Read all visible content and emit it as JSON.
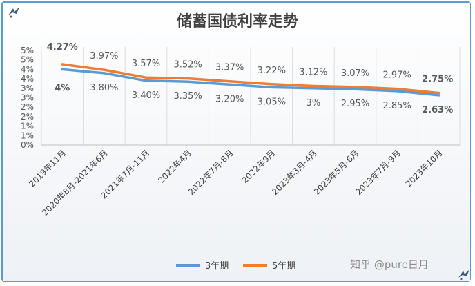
{
  "chart_data": {
    "type": "line",
    "title": "储蓄国债利率走势",
    "xlabel": "",
    "ylabel": "",
    "categories": [
      "2019年11月",
      "2020年8月-2021年6月",
      "2021年7月-11月",
      "2022年4月",
      "2022年7月-8月",
      "2022年9月",
      "2023年3月-4月",
      "2023年5月-6月",
      "2023年7月-9月",
      "2023年10月"
    ],
    "y_ticks": [
      "0%",
      "1%",
      "1%",
      "2%",
      "2%",
      "3%",
      "3%",
      "4%",
      "4%",
      "5%",
      "5%"
    ],
    "ylim": [
      0,
      5
    ],
    "grid": "vertical",
    "legend_position": "bottom",
    "series": [
      {
        "name": "3年期",
        "color": "#5b9bd5",
        "values": [
          4.0,
          3.8,
          3.4,
          3.35,
          3.2,
          3.05,
          3.0,
          2.95,
          2.85,
          2.63
        ],
        "labels": [
          "4%",
          "3.80%",
          "3.40%",
          "3.35%",
          "3.20%",
          "3.05%",
          "3%",
          "2.95%",
          "2.85%",
          "2.63%"
        ]
      },
      {
        "name": "5年期",
        "color": "#ed7d31",
        "values": [
          4.27,
          3.97,
          3.57,
          3.52,
          3.37,
          3.22,
          3.12,
          3.07,
          2.97,
          2.75
        ],
        "labels": [
          "4.27%",
          "3.97%",
          "3.57%",
          "3.52%",
          "3.37%",
          "3.22%",
          "3.12%",
          "3.07%",
          "2.97%",
          "2.75%"
        ]
      }
    ],
    "label_colors": {
      "default": "#595959",
      "first_highlight": "#5b9bd5",
      "last_highlight": "#c00000"
    }
  },
  "watermark": "知乎 @pure日月",
  "corner_icons": [
    "bird-icon",
    "bird-icon"
  ]
}
